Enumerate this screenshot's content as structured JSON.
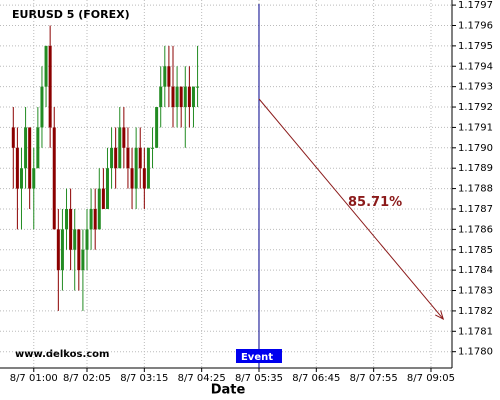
{
  "chart_data": {
    "type": "candlestick",
    "title": "EURUSD 5 (FOREX)",
    "x_label": "Date",
    "watermark": "www.delkos.com",
    "up_color": "#228b22",
    "down_color": "#8b0000",
    "x": [
      "8/7 00:35",
      "8/7 00:40",
      "8/7 00:45",
      "8/7 00:50",
      "8/7 00:55",
      "8/7 01:00",
      "8/7 01:05",
      "8/7 01:10",
      "8/7 01:15",
      "8/7 01:20",
      "8/7 01:25",
      "8/7 01:30",
      "8/7 01:35",
      "8/7 01:40",
      "8/7 01:45",
      "8/7 01:50",
      "8/7 01:55",
      "8/7 02:00",
      "8/7 02:05",
      "8/7 02:10",
      "8/7 02:15",
      "8/7 02:20",
      "8/7 02:25",
      "8/7 02:30",
      "8/7 02:35",
      "8/7 02:40",
      "8/7 02:45",
      "8/7 02:50",
      "8/7 02:55",
      "8/7 03:00",
      "8/7 03:05",
      "8/7 03:10",
      "8/7 03:15",
      "8/7 03:20",
      "8/7 03:25",
      "8/7 03:30",
      "8/7 03:35",
      "8/7 03:40",
      "8/7 03:45",
      "8/7 03:50",
      "8/7 03:55",
      "8/7 04:00",
      "8/7 04:05",
      "8/7 04:10",
      "8/7 04:15",
      "8/7 04:20"
    ],
    "open": [
      1.1791,
      1.179,
      1.1788,
      1.1789,
      1.1791,
      1.1788,
      1.1789,
      1.1791,
      1.1793,
      1.1795,
      1.1791,
      1.1786,
      1.1784,
      1.1786,
      1.1787,
      1.1785,
      1.1786,
      1.1784,
      1.1785,
      1.1786,
      1.1787,
      1.1786,
      1.1788,
      1.1787,
      1.1789,
      1.179,
      1.1789,
      1.1791,
      1.179,
      1.1789,
      1.1788,
      1.179,
      1.1789,
      1.1788,
      1.179,
      1.179,
      1.1792,
      1.1793,
      1.1794,
      1.1793,
      1.1792,
      1.1793,
      1.1792,
      1.1793,
      1.1792,
      1.1793
    ],
    "high": [
      1.1792,
      1.1791,
      1.179,
      1.1792,
      1.1791,
      1.179,
      1.1792,
      1.1794,
      1.1795,
      1.1796,
      1.1792,
      1.1787,
      1.1787,
      1.1788,
      1.1788,
      1.1787,
      1.1786,
      1.1786,
      1.1787,
      1.1788,
      1.1788,
      1.1789,
      1.1789,
      1.179,
      1.1791,
      1.1791,
      1.1792,
      1.1792,
      1.1791,
      1.179,
      1.1791,
      1.1791,
      1.179,
      1.179,
      1.1791,
      1.1792,
      1.1794,
      1.1795,
      1.1795,
      1.1795,
      1.1794,
      1.1793,
      1.1794,
      1.1794,
      1.1793,
      1.1795
    ],
    "low": [
      1.1788,
      1.1786,
      1.1786,
      1.1788,
      1.1787,
      1.1786,
      1.1789,
      1.179,
      1.1792,
      1.179,
      1.1786,
      1.1782,
      1.1783,
      1.1785,
      1.1784,
      1.1783,
      1.1783,
      1.1782,
      1.1784,
      1.1785,
      1.1785,
      1.1786,
      1.1787,
      1.1787,
      1.1788,
      1.1788,
      1.1789,
      1.1789,
      1.1788,
      1.1787,
      1.1787,
      1.1788,
      1.1787,
      1.1788,
      1.1789,
      1.179,
      1.1791,
      1.1792,
      1.1792,
      1.1791,
      1.1791,
      1.1791,
      1.179,
      1.1791,
      1.1791,
      1.1792
    ],
    "close": [
      1.179,
      1.1788,
      1.1789,
      1.1791,
      1.1788,
      1.1789,
      1.1791,
      1.1793,
      1.1795,
      1.1791,
      1.1786,
      1.1784,
      1.1786,
      1.1787,
      1.1785,
      1.1786,
      1.1784,
      1.1785,
      1.1786,
      1.1787,
      1.1786,
      1.1788,
      1.1787,
      1.1789,
      1.179,
      1.1789,
      1.1791,
      1.179,
      1.1789,
      1.1788,
      1.179,
      1.1789,
      1.1788,
      1.179,
      1.179,
      1.1792,
      1.1793,
      1.1794,
      1.1793,
      1.1792,
      1.1793,
      1.1792,
      1.1793,
      1.1792,
      1.1793,
      1.1793
    ],
    "ylim": [
      1.17792,
      1.179725
    ],
    "yticks": [
      {
        "value": 1.178,
        "label": "1.1780"
      },
      1.1781,
      1.1782,
      1.1783,
      1.1784,
      1.1785,
      1.1786,
      1.1787,
      1.1788,
      1.1789,
      {
        "value": 1.179,
        "label": "1.1790"
      },
      1.1791,
      1.1792,
      1.1793,
      1.1794,
      1.1795,
      1.1796,
      1.1797
    ],
    "xticks": [
      "8/7 01:00",
      "8/7 02:05",
      "8/7 03:15",
      "8/7 04:25",
      "8/7 05:35",
      "8/7 06:45",
      "8/7 07:55",
      "8/7 09:05"
    ],
    "grid": true,
    "event": {
      "label": "Event",
      "time": "8/7 05:35",
      "color": "#00008b"
    },
    "projection": {
      "start_time": "8/7 05:35",
      "start_value": 1.17924,
      "end_time": "8/7 09:20",
      "end_value": 1.17816,
      "label": "85.71%",
      "color": "#8b1a1a"
    }
  }
}
